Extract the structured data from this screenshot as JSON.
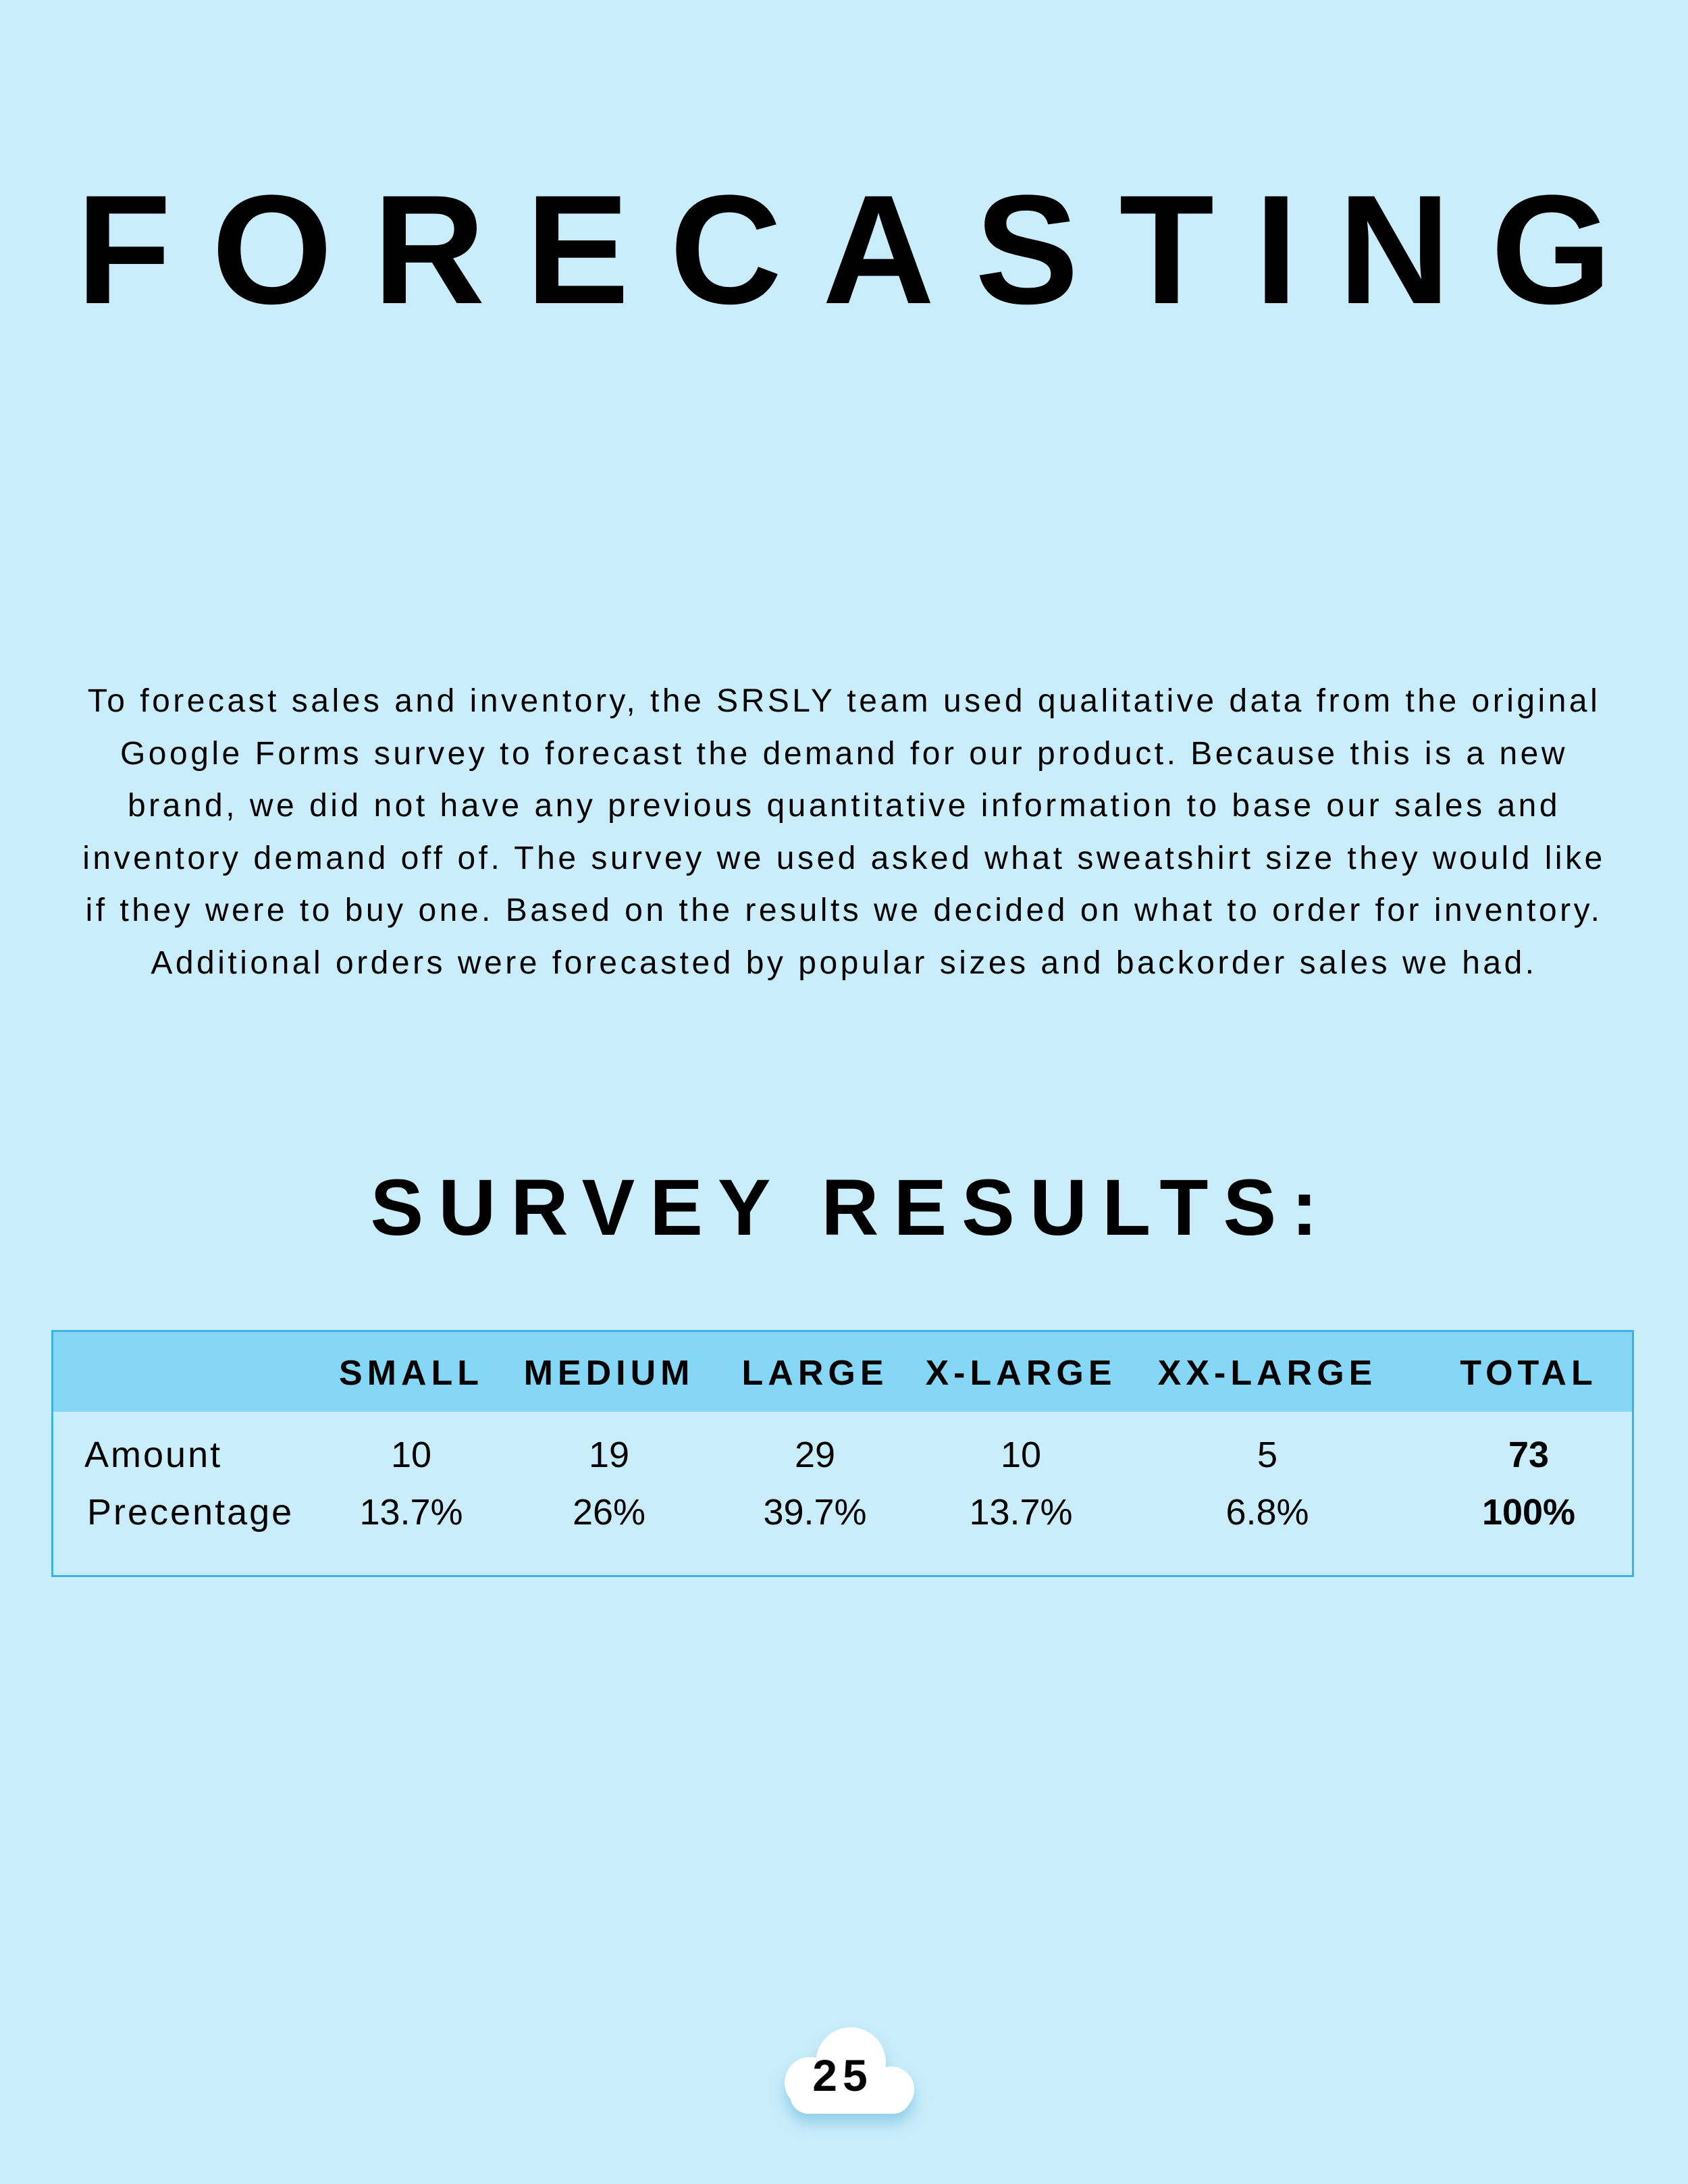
{
  "header": {
    "title": "FORECASTING"
  },
  "body": {
    "paragraph": "To forecast sales and inventory, the SRSLY team used qualitative data from the original Google Forms survey to forecast the demand for our product. Because this is a new brand, we did not have any previous quantitative information to base our sales and inventory demand off of. The survey we used asked what sweatshirt size they would like if they were to buy one. Based on the results we decided on what to order for inventory. Additional orders were forecasted by popular sizes and backorder sales we had."
  },
  "section": {
    "title": "SURVEY RESULTS:"
  },
  "table": {
    "columns": [
      "SMALL",
      "MEDIUM",
      "LARGE",
      "X-LARGE",
      "XX-LARGE",
      "TOTAL"
    ],
    "rows": [
      [
        "Amount",
        "10",
        "19",
        "29",
        "10",
        "5",
        "73"
      ],
      [
        "Precentage",
        "13.7%",
        "26%",
        "39.7%",
        "13.7%",
        "6.8%",
        "100%"
      ]
    ]
  },
  "footer": {
    "page_number": "25"
  }
}
